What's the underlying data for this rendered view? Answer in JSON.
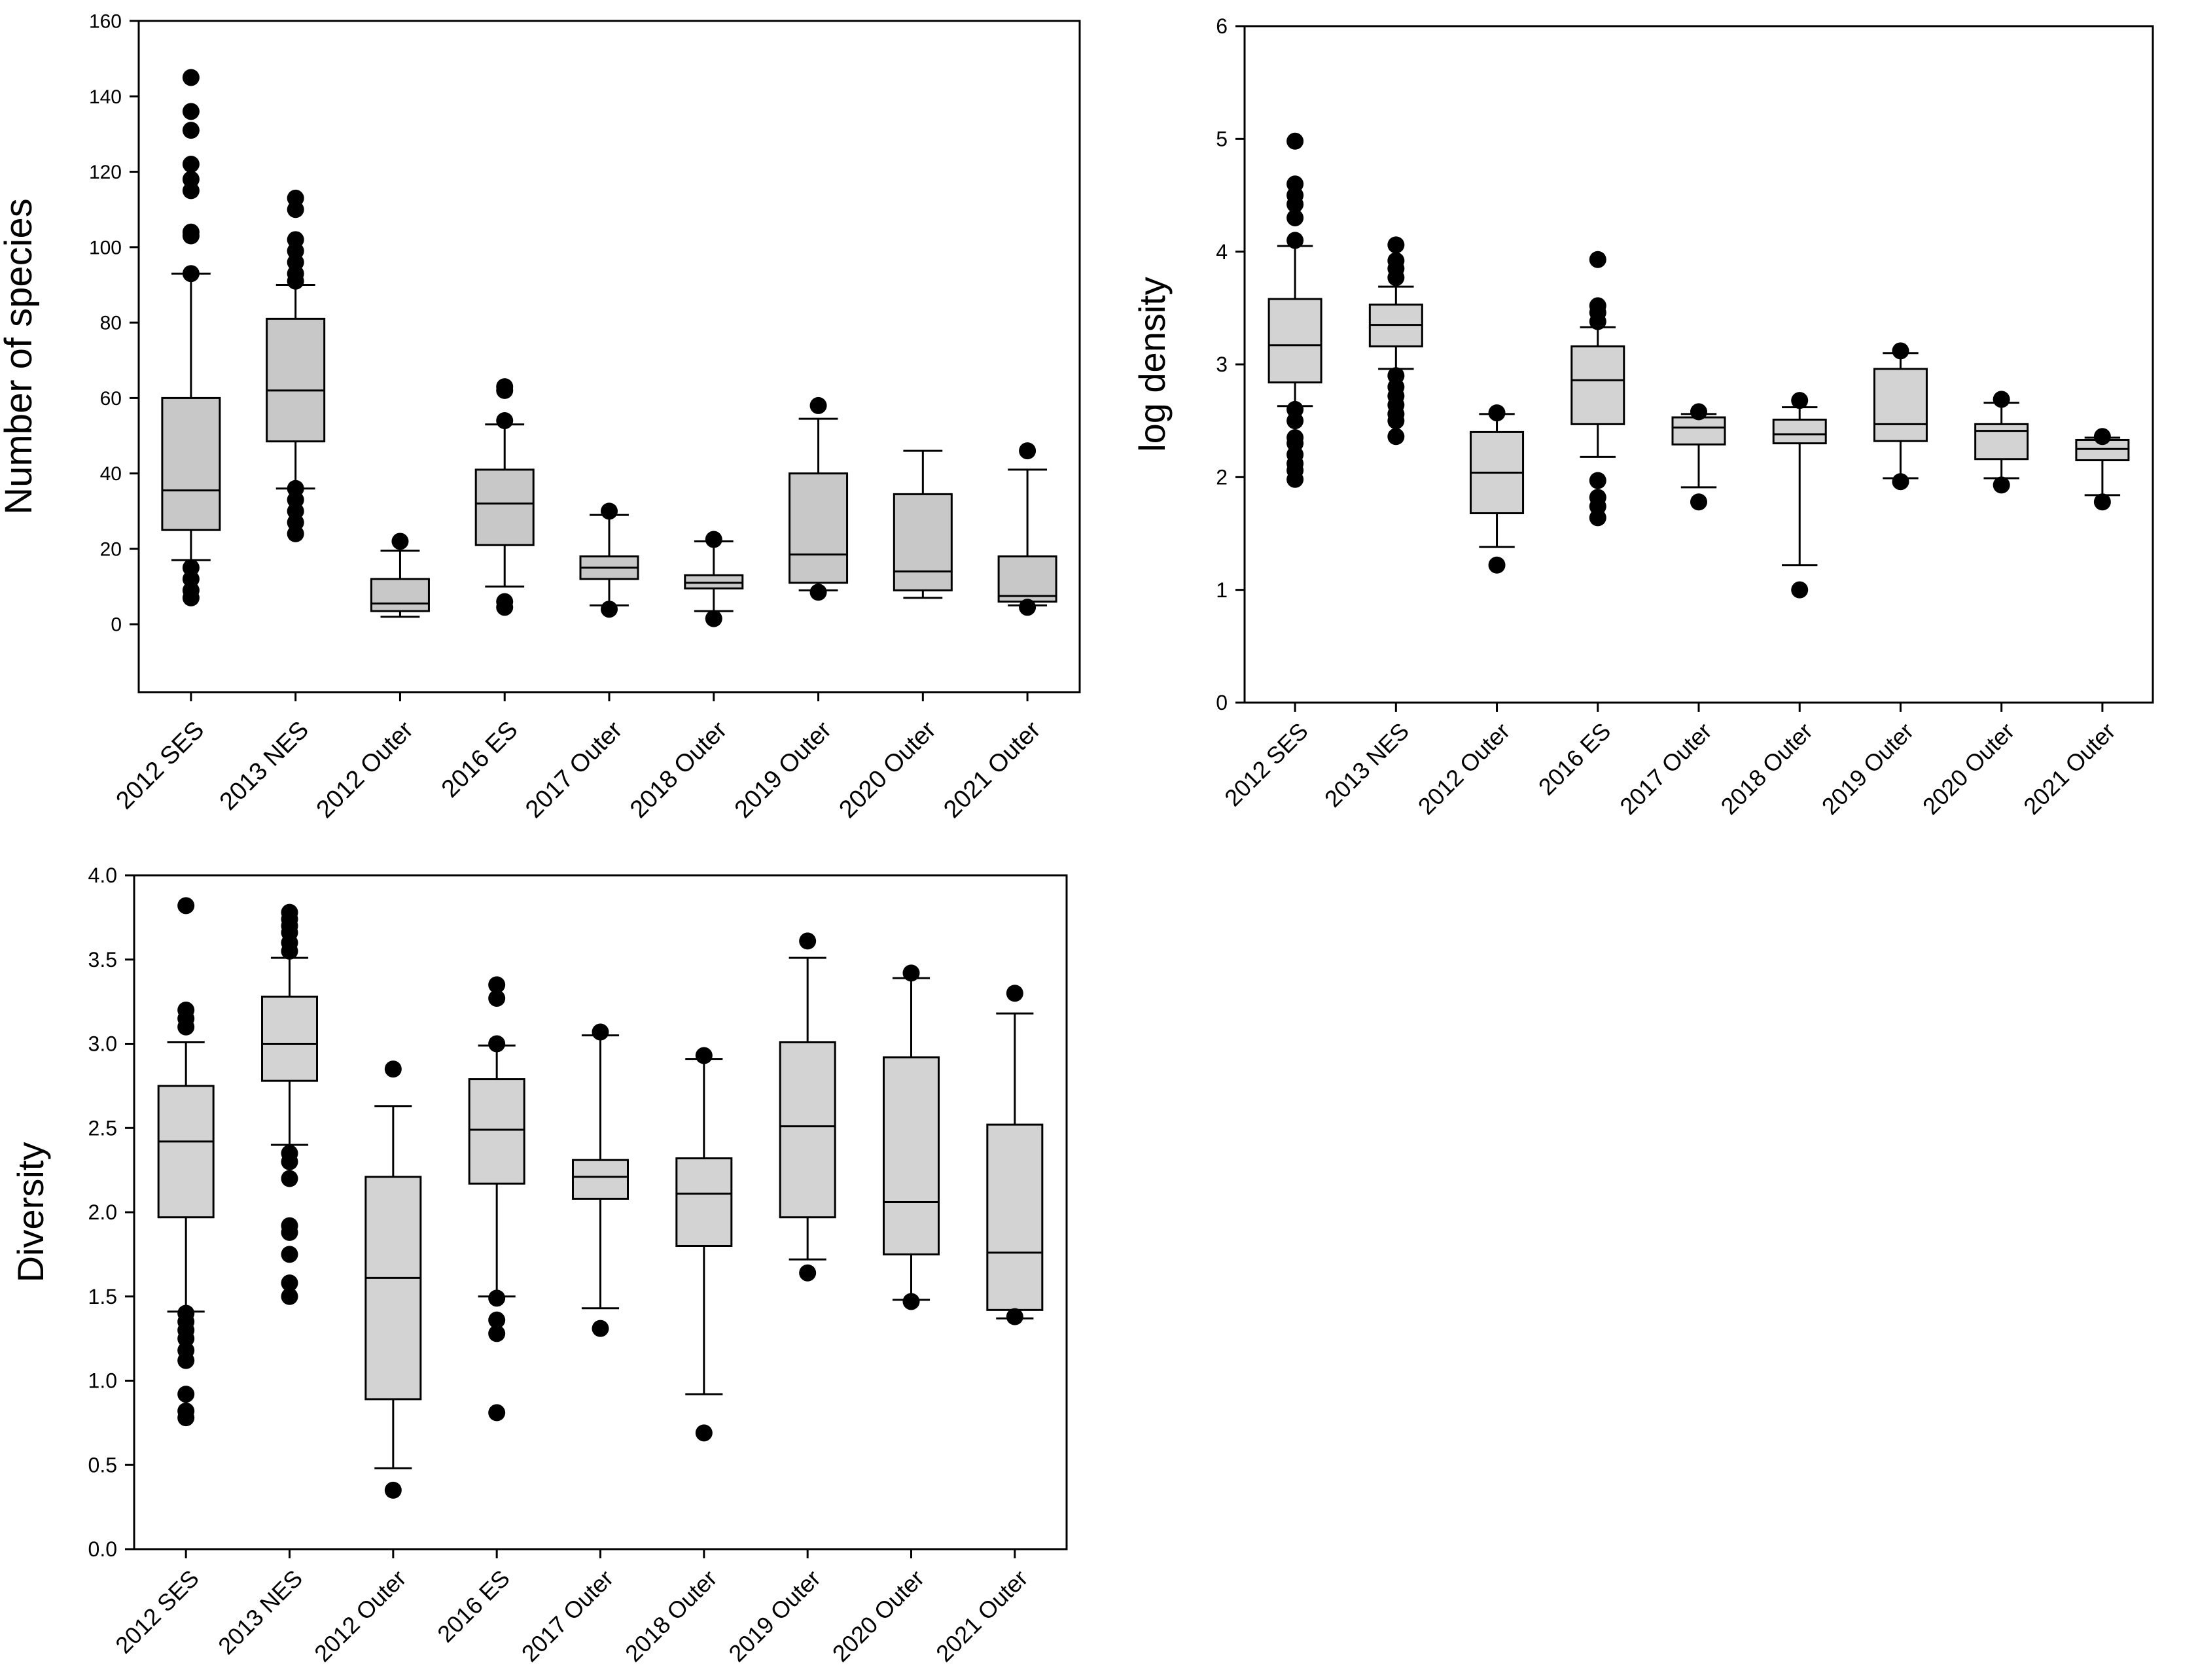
{
  "figure_colors": {
    "box_fill_a": "#c8c8c8",
    "box_fill_b": "#d3d3d3",
    "ink": "#000000"
  },
  "chart_data": [
    {
      "id": "species",
      "type": "box",
      "title": "",
      "xlabel": "",
      "ylabel": "Number of species",
      "ylim": [
        -18,
        160
      ],
      "yticks": [
        "0",
        "20",
        "40",
        "60",
        "80",
        "100",
        "120",
        "140",
        "160"
      ],
      "categories": [
        "2012 SES",
        "2013 NES",
        "2012 Outer",
        "2016 ES",
        "2017 Outer",
        "2018 Outer",
        "2019 Outer",
        "2020 Outer",
        "2021 Outer"
      ],
      "boxes": [
        {
          "q1": 25,
          "median": 35.5,
          "q3": 60,
          "whisker_low": 17,
          "whisker_high": 93,
          "outliers": [
            145,
            136,
            131,
            122,
            118,
            115,
            104,
            103,
            93,
            15,
            12,
            9,
            7
          ]
        },
        {
          "q1": 48.5,
          "median": 62,
          "q3": 81,
          "whisker_low": 36,
          "whisker_high": 90,
          "outliers": [
            113,
            110,
            102,
            99,
            96,
            93,
            91,
            36,
            33,
            30,
            27,
            24
          ]
        },
        {
          "q1": 3.5,
          "median": 5.5,
          "q3": 12,
          "whisker_low": 2,
          "whisker_high": 19.5,
          "outliers": [
            22
          ]
        },
        {
          "q1": 21,
          "median": 32,
          "q3": 41,
          "whisker_low": 10,
          "whisker_high": 53,
          "outliers": [
            63,
            62,
            54,
            6,
            4.5
          ]
        },
        {
          "q1": 12,
          "median": 15,
          "q3": 18,
          "whisker_low": 5,
          "whisker_high": 29,
          "outliers": [
            30,
            4
          ]
        },
        {
          "q1": 9.5,
          "median": 11,
          "q3": 13,
          "whisker_low": 3.5,
          "whisker_high": 22,
          "outliers": [
            22.5,
            1.5
          ]
        },
        {
          "q1": 11,
          "median": 18.5,
          "q3": 40,
          "whisker_low": 9,
          "whisker_high": 54.5,
          "outliers": [
            58,
            8.5
          ]
        },
        {
          "q1": 9,
          "median": 14,
          "q3": 34.5,
          "whisker_low": 7,
          "whisker_high": 46,
          "outliers": []
        },
        {
          "q1": 6,
          "median": 7.5,
          "q3": 18,
          "whisker_low": 5,
          "whisker_high": 41,
          "outliers": [
            46,
            4.5
          ]
        }
      ]
    },
    {
      "id": "log-density",
      "type": "box",
      "title": "",
      "xlabel": "",
      "ylabel": "log density",
      "ylim": [
        0,
        6
      ],
      "yticks": [
        "0",
        "1",
        "2",
        "3",
        "4",
        "5",
        "6"
      ],
      "categories": [
        "2012 SES",
        "2013 NES",
        "2012 Outer",
        "2016 ES",
        "2017 Outer",
        "2018 Outer",
        "2019 Outer",
        "2020 Outer",
        "2021 Outer"
      ],
      "boxes": [
        {
          "q1": 2.84,
          "median": 3.17,
          "q3": 3.58,
          "whisker_low": 2.63,
          "whisker_high": 4.05,
          "outliers": [
            4.98,
            4.6,
            4.5,
            4.42,
            4.3,
            4.1,
            2.6,
            2.5,
            2.35,
            2.3,
            2.2,
            2.12,
            2.06,
            1.98
          ]
        },
        {
          "q1": 3.16,
          "median": 3.35,
          "q3": 3.53,
          "whisker_low": 2.96,
          "whisker_high": 3.69,
          "outliers": [
            4.06,
            3.92,
            3.85,
            3.77,
            2.9,
            2.8,
            2.72,
            2.64,
            2.56,
            2.5,
            2.36
          ]
        },
        {
          "q1": 1.68,
          "median": 2.04,
          "q3": 2.4,
          "whisker_low": 1.38,
          "whisker_high": 2.56,
          "outliers": [
            2.57,
            1.22
          ]
        },
        {
          "q1": 2.47,
          "median": 2.86,
          "q3": 3.16,
          "whisker_low": 2.18,
          "whisker_high": 3.33,
          "outliers": [
            3.93,
            3.52,
            3.46,
            3.38,
            1.97,
            1.82,
            1.74,
            1.64
          ]
        },
        {
          "q1": 2.29,
          "median": 2.44,
          "q3": 2.53,
          "whisker_low": 1.91,
          "whisker_high": 2.56,
          "outliers": [
            2.58,
            1.78
          ]
        },
        {
          "q1": 2.3,
          "median": 2.38,
          "q3": 2.51,
          "whisker_low": 1.22,
          "whisker_high": 2.62,
          "outliers": [
            2.68,
            1.0
          ]
        },
        {
          "q1": 2.32,
          "median": 2.47,
          "q3": 2.96,
          "whisker_low": 1.99,
          "whisker_high": 3.1,
          "outliers": [
            3.12,
            1.96
          ]
        },
        {
          "q1": 2.16,
          "median": 2.41,
          "q3": 2.47,
          "whisker_low": 1.99,
          "whisker_high": 2.66,
          "outliers": [
            2.69,
            1.93
          ]
        },
        {
          "q1": 2.15,
          "median": 2.25,
          "q3": 2.33,
          "whisker_low": 1.84,
          "whisker_high": 2.35,
          "outliers": [
            2.36,
            1.78
          ]
        }
      ]
    },
    {
      "id": "diversity",
      "type": "box",
      "title": "",
      "xlabel": "",
      "ylabel": "Diversity",
      "ylim": [
        0,
        4
      ],
      "yticks": [
        "0.0",
        "0.5",
        "1.0",
        "1.5",
        "2.0",
        "2.5",
        "3.0",
        "3.5",
        "4.0"
      ],
      "categories": [
        "2012 SES",
        "2013 NES",
        "2012 Outer",
        "2016 ES",
        "2017 Outer",
        "2018 Outer",
        "2019 Outer",
        "2020 Outer",
        "2021 Outer"
      ],
      "boxes": [
        {
          "q1": 1.97,
          "median": 2.42,
          "q3": 2.75,
          "whisker_low": 1.41,
          "whisker_high": 3.01,
          "outliers": [
            3.82,
            3.2,
            3.15,
            3.1,
            1.4,
            1.35,
            1.3,
            1.25,
            1.18,
            1.12,
            0.92,
            0.82,
            0.78
          ]
        },
        {
          "q1": 2.78,
          "median": 3.0,
          "q3": 3.28,
          "whisker_low": 2.4,
          "whisker_high": 3.51,
          "outliers": [
            3.78,
            3.74,
            3.7,
            3.66,
            3.6,
            3.55,
            2.35,
            2.3,
            2.2,
            1.92,
            1.88,
            1.75,
            1.58,
            1.5
          ]
        },
        {
          "q1": 0.89,
          "median": 1.61,
          "q3": 2.21,
          "whisker_low": 0.48,
          "whisker_high": 2.63,
          "outliers": [
            2.85,
            0.35
          ]
        },
        {
          "q1": 2.17,
          "median": 2.49,
          "q3": 2.79,
          "whisker_low": 1.5,
          "whisker_high": 2.99,
          "outliers": [
            3.35,
            3.27,
            3.0,
            1.49,
            1.36,
            1.28,
            0.81
          ]
        },
        {
          "q1": 2.08,
          "median": 2.21,
          "q3": 2.31,
          "whisker_low": 1.43,
          "whisker_high": 3.05,
          "outliers": [
            3.07,
            1.31
          ]
        },
        {
          "q1": 1.8,
          "median": 2.11,
          "q3": 2.32,
          "whisker_low": 0.92,
          "whisker_high": 2.91,
          "outliers": [
            2.93,
            0.69
          ]
        },
        {
          "q1": 1.97,
          "median": 2.51,
          "q3": 3.01,
          "whisker_low": 1.72,
          "whisker_high": 3.51,
          "outliers": [
            3.61,
            1.64
          ]
        },
        {
          "q1": 1.75,
          "median": 2.06,
          "q3": 2.92,
          "whisker_low": 1.48,
          "whisker_high": 3.39,
          "outliers": [
            3.42,
            1.47
          ]
        },
        {
          "q1": 1.42,
          "median": 1.76,
          "q3": 2.52,
          "whisker_low": 1.37,
          "whisker_high": 3.18,
          "outliers": [
            3.3,
            1.38
          ]
        }
      ]
    }
  ]
}
